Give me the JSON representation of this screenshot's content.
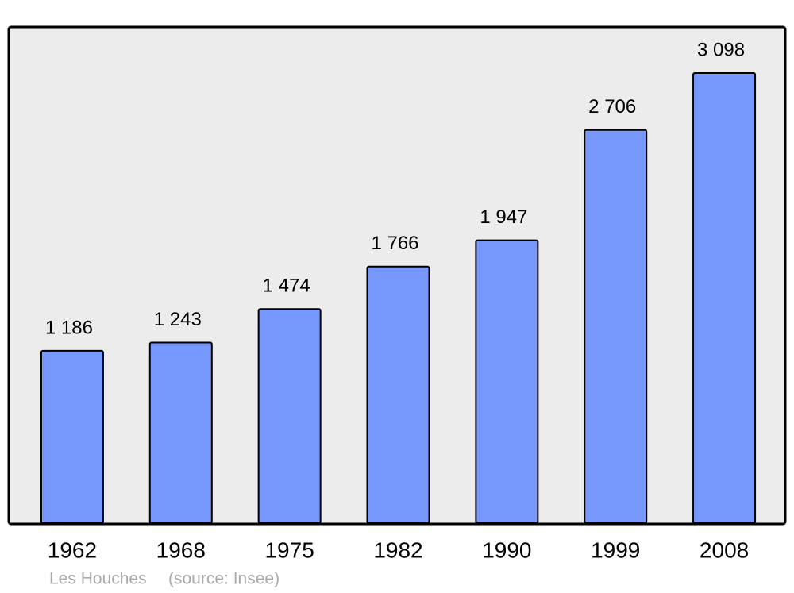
{
  "chart_data": {
    "type": "bar",
    "categories": [
      "1962",
      "1968",
      "1975",
      "1982",
      "1990",
      "1999",
      "2008"
    ],
    "values": [
      1186,
      1243,
      1474,
      1766,
      1947,
      2706,
      3098
    ],
    "value_labels": [
      "1 186",
      "1 243",
      "1 474",
      "1 766",
      "1 947",
      "2 706",
      "3 098"
    ],
    "color": "#7799ff",
    "caption": "Les Houches",
    "source": "(source: Insee)"
  }
}
